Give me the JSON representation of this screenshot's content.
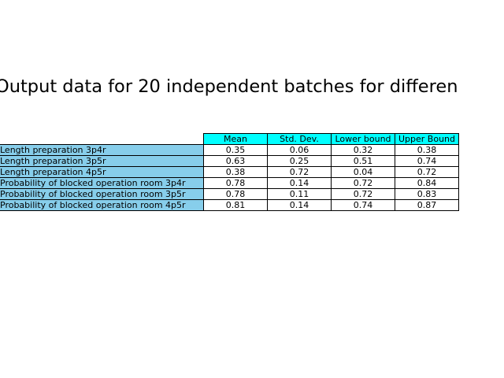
{
  "colors": {
    "header_bg": "#00ffff",
    "rowlabel_bg": "#87ceeb",
    "cell_bg": "#ffffff",
    "border": "#000000"
  },
  "chart_data": {
    "type": "table",
    "title": "Output data for 20 independent batches for differen",
    "columns": [
      "Mean",
      "Std. Dev.",
      "Lower bound",
      "Upper Bound"
    ],
    "rows": [
      {
        "label": "Length preparation 3p4r",
        "values": [
          "0.35",
          "0.06",
          "0.32",
          "0.38"
        ]
      },
      {
        "label": "Length preparation 3p5r",
        "values": [
          "0.63",
          "0.25",
          "0.51",
          "0.74"
        ]
      },
      {
        "label": "Length preparation 4p5r",
        "values": [
          "0.38",
          "0.72",
          "0.04",
          "0.72"
        ]
      },
      {
        "label": "Probability of blocked operation room 3p4r",
        "values": [
          "0.78",
          "0.14",
          "0.72",
          "0.84"
        ]
      },
      {
        "label": "Probability of blocked operation room 3p5r",
        "values": [
          "0.78",
          "0.11",
          "0.72",
          "0.83"
        ]
      },
      {
        "label": "Probability of blocked operation room 4p5r",
        "values": [
          "0.81",
          "0.14",
          "0.74",
          "0.87"
        ]
      }
    ]
  }
}
